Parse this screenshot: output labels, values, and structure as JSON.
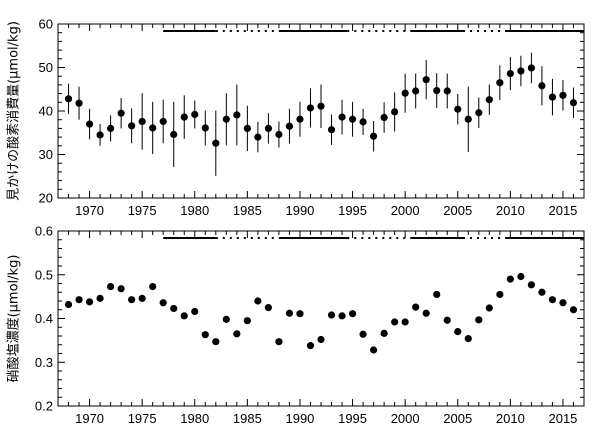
{
  "chart_data": [
    {
      "type": "scatter",
      "ylabel": "見かけの酸素消費量(μmol/kg)",
      "xlabel": "",
      "xlim": [
        1967,
        2017
      ],
      "ylim": [
        20,
        60
      ],
      "x_ticks": [
        1970,
        1975,
        1980,
        1985,
        1990,
        1995,
        2000,
        2005,
        2010,
        2015
      ],
      "y_ticks": [
        20,
        30,
        40,
        50,
        60
      ],
      "grid": false,
      "series": [
        {
          "x": [
            1968,
            1969,
            1970,
            1971,
            1972,
            1973,
            1974,
            1975,
            1976,
            1977,
            1978,
            1979,
            1980,
            1981,
            1982,
            1983,
            1984,
            1985,
            1986,
            1987,
            1988,
            1989,
            1990,
            1991,
            1992,
            1993,
            1994,
            1995,
            1996,
            1997,
            1998,
            1999,
            2000,
            2001,
            2002,
            2003,
            2004,
            2005,
            2006,
            2007,
            2008,
            2009,
            2010,
            2011,
            2012,
            2013,
            2014,
            2015,
            2016
          ],
          "y": [
            42.8,
            41.8,
            37.0,
            34.5,
            36.0,
            39.5,
            36.6,
            37.6,
            36.1,
            37.6,
            34.6,
            38.6,
            39.2,
            36.1,
            32.6,
            38.1,
            39.1,
            36.0,
            34.0,
            36.0,
            34.6,
            36.5,
            38.1,
            40.7,
            41.1,
            35.7,
            38.6,
            38.1,
            37.5,
            34.2,
            38.5,
            39.8,
            44.1,
            44.6,
            47.2,
            44.7,
            44.6,
            40.4,
            38.1,
            39.6,
            42.6,
            46.5,
            48.6,
            49.2,
            49.9,
            45.8,
            43.2,
            43.6,
            41.9
          ],
          "y_err_low": [
            3.5,
            3.8,
            3.5,
            2.5,
            3.0,
            3.5,
            4.0,
            6.5,
            6.0,
            5.0,
            7.5,
            5.0,
            3.2,
            4.0,
            7.5,
            6.0,
            7.0,
            5.2,
            3.5,
            3.5,
            3.0,
            4.0,
            4.0,
            4.5,
            5.0,
            3.5,
            4.0,
            4.0,
            3.0,
            3.5,
            3.5,
            4.5,
            4.5,
            4.0,
            4.5,
            4.0,
            4.0,
            3.5,
            7.5,
            3.5,
            3.5,
            4.0,
            3.8,
            3.5,
            3.5,
            4.5,
            4.2,
            3.5,
            3.5
          ],
          "y_err_high": [
            3.5,
            3.8,
            3.5,
            2.5,
            3.0,
            3.5,
            4.0,
            6.5,
            6.0,
            5.0,
            7.5,
            5.0,
            3.2,
            4.0,
            7.5,
            6.0,
            7.0,
            5.2,
            3.5,
            3.5,
            3.0,
            4.0,
            4.0,
            4.5,
            5.0,
            3.5,
            4.0,
            4.0,
            3.0,
            3.5,
            3.5,
            4.5,
            4.5,
            4.0,
            4.5,
            4.0,
            4.0,
            3.5,
            7.5,
            3.5,
            3.5,
            4.0,
            3.8,
            3.5,
            3.5,
            4.5,
            4.2,
            3.5,
            3.5
          ]
        }
      ],
      "coverage": [
        {
          "start": 1977,
          "end": 1982,
          "style": "solid"
        },
        {
          "start": 1982,
          "end": 1988,
          "style": "dotted"
        },
        {
          "start": 1988,
          "end": 1994.5,
          "style": "solid"
        },
        {
          "start": 1994.5,
          "end": 2000.5,
          "style": "dotted"
        },
        {
          "start": 2000.5,
          "end": 2005.5,
          "style": "solid"
        },
        {
          "start": 2005.5,
          "end": 2009.5,
          "style": "dotted"
        },
        {
          "start": 2009.5,
          "end": 2017,
          "style": "solid"
        }
      ]
    },
    {
      "type": "scatter",
      "ylabel": "硝酸塩濃度(μmol/kg)",
      "xlabel": "",
      "xlim": [
        1967,
        2017
      ],
      "ylim": [
        0.2,
        0.6
      ],
      "x_ticks": [
        1970,
        1975,
        1980,
        1985,
        1990,
        1995,
        2000,
        2005,
        2010,
        2015
      ],
      "y_ticks": [
        0.2,
        0.3,
        0.4,
        0.5,
        0.6
      ],
      "grid": false,
      "series": [
        {
          "x": [
            1968,
            1969,
            1970,
            1971,
            1972,
            1973,
            1974,
            1975,
            1976,
            1977,
            1978,
            1979,
            1980,
            1981,
            1982,
            1983,
            1984,
            1985,
            1986,
            1987,
            1988,
            1989,
            1990,
            1991,
            1992,
            1993,
            1994,
            1995,
            1996,
            1997,
            1998,
            1999,
            2000,
            2001,
            2002,
            2003,
            2004,
            2005,
            2006,
            2007,
            2008,
            2009,
            2010,
            2011,
            2012,
            2013,
            2014,
            2015,
            2016
          ],
          "y": [
            0.432,
            0.443,
            0.438,
            0.446,
            0.473,
            0.468,
            0.443,
            0.446,
            0.473,
            0.436,
            0.423,
            0.406,
            0.416,
            0.363,
            0.347,
            0.398,
            0.365,
            0.395,
            0.44,
            0.425,
            0.347,
            0.412,
            0.411,
            0.338,
            0.352,
            0.408,
            0.406,
            0.411,
            0.364,
            0.328,
            0.366,
            0.392,
            0.392,
            0.426,
            0.412,
            0.455,
            0.396,
            0.37,
            0.354,
            0.397,
            0.424,
            0.455,
            0.49,
            0.496,
            0.477,
            0.46,
            0.443,
            0.436,
            0.42
          ]
        }
      ],
      "coverage": [
        {
          "start": 1977,
          "end": 1982,
          "style": "solid"
        },
        {
          "start": 1982,
          "end": 1988,
          "style": "dotted"
        },
        {
          "start": 1988,
          "end": 1994.5,
          "style": "solid"
        },
        {
          "start": 1994.5,
          "end": 2000.5,
          "style": "dotted"
        },
        {
          "start": 2000.5,
          "end": 2005.5,
          "style": "solid"
        },
        {
          "start": 2005.5,
          "end": 2009.5,
          "style": "dotted"
        },
        {
          "start": 2009.5,
          "end": 2017,
          "style": "solid"
        }
      ]
    }
  ]
}
